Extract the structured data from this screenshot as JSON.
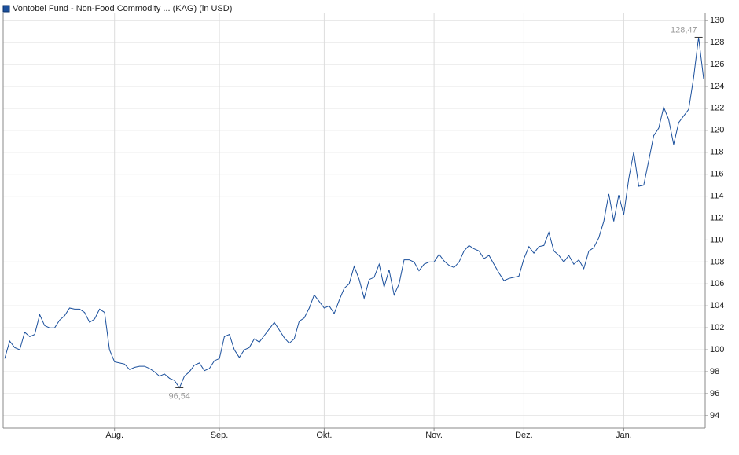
{
  "chart_data": {
    "type": "line",
    "categories": [
      null,
      null,
      null,
      null,
      null,
      null,
      null,
      null,
      null,
      null,
      null,
      null,
      null,
      null,
      null,
      null,
      null,
      null,
      null,
      null,
      null,
      null,
      "Aug.",
      null,
      null,
      null,
      null,
      null,
      null,
      null,
      null,
      null,
      null,
      null,
      null,
      null,
      null,
      null,
      null,
      null,
      null,
      null,
      null,
      "Sep.",
      null,
      null,
      null,
      null,
      null,
      null,
      null,
      null,
      null,
      null,
      null,
      null,
      null,
      null,
      null,
      null,
      null,
      null,
      null,
      null,
      "Okt.",
      null,
      null,
      null,
      null,
      null,
      null,
      null,
      null,
      null,
      null,
      null,
      null,
      null,
      null,
      null,
      null,
      null,
      null,
      null,
      null,
      null,
      "Nov.",
      null,
      null,
      null,
      null,
      null,
      null,
      null,
      null,
      null,
      null,
      null,
      null,
      null,
      null,
      null,
      null,
      null,
      "Dez.",
      null,
      null,
      null,
      null,
      null,
      null,
      null,
      null,
      null,
      null,
      null,
      null,
      null,
      null,
      null,
      null,
      null,
      null,
      null,
      "Jan.",
      null,
      null,
      null,
      null,
      null,
      null,
      null,
      null,
      null,
      null,
      null,
      null,
      null,
      null,
      null,
      null
    ],
    "series": [
      {
        "name": "Vontobel Fund - Non-Food Commodity ... (KAG) (in USD)",
        "color": "#1a4f9c",
        "values": [
          99.2,
          100.8,
          100.2,
          100.0,
          101.6,
          101.2,
          101.4,
          103.2,
          102.2,
          102.0,
          102.0,
          102.7,
          103.1,
          103.8,
          103.7,
          103.7,
          103.4,
          102.5,
          102.8,
          103.7,
          103.4,
          100.0,
          98.9,
          98.8,
          98.7,
          98.2,
          98.4,
          98.5,
          98.5,
          98.3,
          98.0,
          97.6,
          97.8,
          97.4,
          97.2,
          96.54,
          97.6,
          98.0,
          98.6,
          98.8,
          98.1,
          98.3,
          99.0,
          99.2,
          101.2,
          101.4,
          100.0,
          99.3,
          100.0,
          100.2,
          101.0,
          100.7,
          101.3,
          101.9,
          102.5,
          101.8,
          101.1,
          100.6,
          101.0,
          102.6,
          102.9,
          103.8,
          105.0,
          104.4,
          103.8,
          104.0,
          103.3,
          104.5,
          105.6,
          106.0,
          107.6,
          106.4,
          104.7,
          106.4,
          106.6,
          107.8,
          105.7,
          107.3,
          105.0,
          106.0,
          108.2,
          108.2,
          108.0,
          107.2,
          107.8,
          108.0,
          108.0,
          108.7,
          108.1,
          107.7,
          107.5,
          108.0,
          109.0,
          109.5,
          109.2,
          109.0,
          108.3,
          108.6,
          107.8,
          107.0,
          106.3,
          106.5,
          106.6,
          106.7,
          108.3,
          109.4,
          108.8,
          109.4,
          109.5,
          110.7,
          109.0,
          108.6,
          108.0,
          108.6,
          107.8,
          108.2,
          107.4,
          109.0,
          109.3,
          110.2,
          111.7,
          114.2,
          111.7,
          114.1,
          112.3,
          115.6,
          118.0,
          114.9,
          115.0,
          117.2,
          119.5,
          120.2,
          122.1,
          121.0,
          118.7,
          120.7,
          121.3,
          121.9,
          124.8,
          128.47,
          124.7
        ],
        "value_labels": [
          null,
          null,
          null,
          null,
          null,
          null,
          null,
          null,
          null,
          null,
          null,
          null,
          null,
          null,
          null,
          null,
          null,
          null,
          null,
          null,
          null,
          null,
          null,
          null,
          null,
          null,
          null,
          null,
          null,
          null,
          null,
          null,
          null,
          null,
          null,
          "96,54",
          null,
          null,
          null,
          null,
          null,
          null,
          null,
          null,
          null,
          null,
          null,
          null,
          null,
          null,
          null,
          null,
          null,
          null,
          null,
          null,
          null,
          null,
          null,
          null,
          null,
          null,
          null,
          null,
          null,
          null,
          null,
          null,
          null,
          null,
          null,
          null,
          null,
          null,
          null,
          null,
          null,
          null,
          null,
          null,
          null,
          null,
          null,
          null,
          null,
          null,
          null,
          null,
          null,
          null,
          null,
          null,
          null,
          null,
          null,
          null,
          null,
          null,
          null,
          null,
          null,
          null,
          null,
          null,
          null,
          null,
          null,
          null,
          null,
          null,
          null,
          null,
          null,
          null,
          null,
          null,
          null,
          null,
          null,
          null,
          null,
          null,
          null,
          null,
          null,
          null,
          null,
          null,
          null,
          null,
          null,
          null,
          null,
          null,
          null,
          null,
          null,
          null,
          null,
          "128,47",
          null
        ]
      }
    ],
    "ylim": [
      92.85,
      130.65
    ],
    "yticks": [
      94,
      96,
      98,
      100,
      102,
      104,
      106,
      108,
      110,
      112,
      114,
      116,
      118,
      120,
      122,
      124,
      126,
      128,
      130
    ],
    "grid": true
  }
}
